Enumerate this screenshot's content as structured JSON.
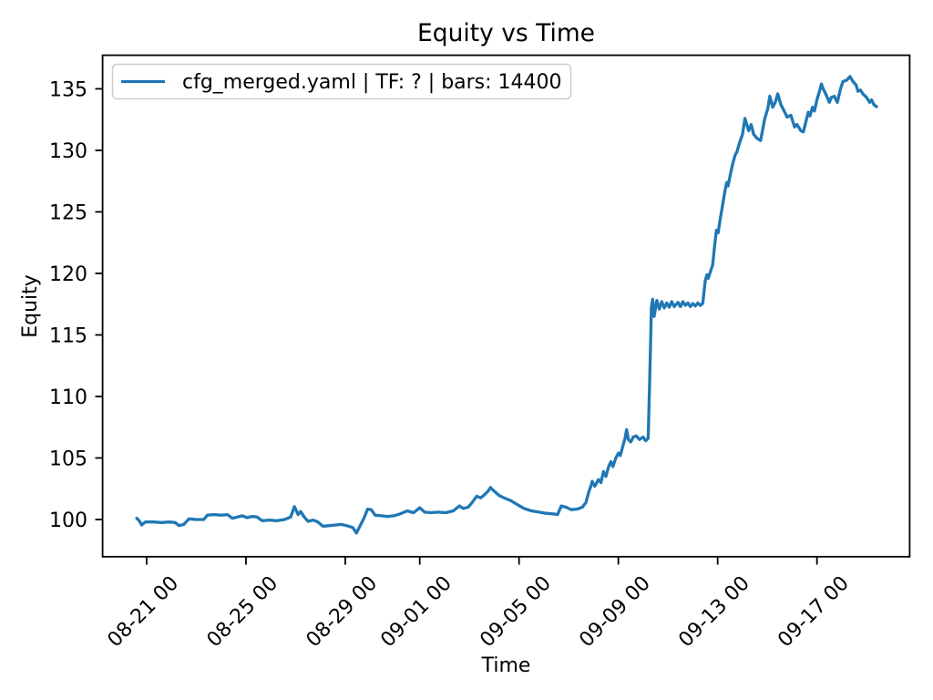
{
  "chart_data": {
    "type": "line",
    "title": "Equity vs Time",
    "xlabel": "Time",
    "ylabel": "Equity",
    "grid": false,
    "legend": [
      {
        "label": "cfg_merged.yaml | TF: ? | bars: 14400",
        "color": "#1f77b4"
      }
    ],
    "legend_position": "upper left",
    "colors": {
      "series": "#1f77b4",
      "spine": "#000000",
      "legend_border": "#cccccc",
      "background": "#ffffff"
    },
    "x_unit": "days since 08-20 00:00",
    "xlim": [
      -0.76,
      31.72
    ],
    "ylim": [
      96.96,
      137.7
    ],
    "yticks": [
      100,
      105,
      110,
      115,
      120,
      125,
      130,
      135
    ],
    "xticks": [
      {
        "v": 1,
        "label": "08-21 00"
      },
      {
        "v": 5,
        "label": "08-25 00"
      },
      {
        "v": 9,
        "label": "08-29 00"
      },
      {
        "v": 12,
        "label": "09-01 00"
      },
      {
        "v": 16,
        "label": "09-05 00"
      },
      {
        "v": 20,
        "label": "09-09 00"
      },
      {
        "v": 24,
        "label": "09-13 00"
      },
      {
        "v": 28,
        "label": "09-17 00"
      }
    ],
    "series": [
      {
        "name": "cfg_merged.yaml | TF: ? | bars: 14400",
        "color": "#1f77b4",
        "x": [
          0.6,
          0.7,
          0.8,
          0.95,
          1.3,
          1.6,
          1.9,
          2.15,
          2.3,
          2.5,
          2.7,
          3.0,
          3.3,
          3.45,
          3.7,
          4.0,
          4.25,
          4.45,
          4.65,
          4.85,
          5.05,
          5.25,
          5.45,
          5.65,
          5.95,
          6.25,
          6.55,
          6.8,
          6.95,
          7.1,
          7.2,
          7.35,
          7.5,
          7.7,
          7.9,
          8.1,
          8.35,
          8.6,
          8.85,
          9.05,
          9.3,
          9.45,
          9.6,
          9.75,
          9.9,
          10.05,
          10.2,
          10.45,
          10.7,
          10.95,
          11.2,
          11.5,
          11.75,
          12.0,
          12.2,
          12.45,
          12.75,
          13.05,
          13.35,
          13.6,
          13.75,
          13.95,
          14.1,
          14.3,
          14.45,
          14.6,
          14.75,
          14.85,
          15.0,
          15.2,
          15.4,
          15.65,
          15.9,
          16.2,
          16.5,
          16.8,
          17.1,
          17.4,
          17.55,
          17.7,
          17.9,
          18.1,
          18.35,
          18.55,
          18.7,
          18.8,
          18.9,
          18.95,
          19.05,
          19.2,
          19.3,
          19.4,
          19.5,
          19.6,
          19.7,
          19.78,
          19.9,
          20.0,
          20.08,
          20.2,
          20.27,
          20.33,
          20.4,
          20.5,
          20.6,
          20.72,
          20.85,
          21.0,
          21.1,
          21.2,
          21.25,
          21.3,
          21.33,
          21.38,
          21.44,
          21.55,
          21.65,
          21.75,
          21.85,
          21.95,
          22.05,
          22.15,
          22.25,
          22.4,
          22.5,
          22.6,
          22.7,
          22.8,
          22.9,
          23.0,
          23.1,
          23.2,
          23.3,
          23.4,
          23.5,
          23.57,
          23.62,
          23.8,
          23.87,
          23.95,
          24.02,
          24.1,
          24.17,
          24.25,
          24.32,
          24.37,
          24.42,
          24.55,
          24.62,
          24.7,
          24.78,
          24.88,
          25.0,
          25.1,
          25.25,
          25.35,
          25.45,
          25.6,
          25.73,
          25.9,
          26.02,
          26.1,
          26.22,
          26.32,
          26.42,
          26.55,
          26.68,
          26.8,
          26.95,
          27.1,
          27.2,
          27.35,
          27.45,
          27.55,
          27.65,
          27.72,
          27.82,
          27.9,
          28.0,
          28.1,
          28.18,
          28.25,
          28.35,
          28.5,
          28.58,
          28.7,
          28.82,
          28.95,
          29.05,
          29.2,
          29.33,
          29.45,
          29.58,
          29.65,
          29.75,
          29.85,
          30.0,
          30.12,
          30.2,
          30.3,
          30.4
        ],
        "y": [
          100.1,
          99.9,
          99.55,
          99.8,
          99.8,
          99.75,
          99.8,
          99.75,
          99.5,
          99.6,
          100.05,
          100.0,
          100.0,
          100.35,
          100.4,
          100.35,
          100.4,
          100.1,
          100.2,
          100.3,
          100.15,
          100.25,
          100.2,
          99.9,
          99.95,
          99.9,
          100.0,
          100.2,
          101.05,
          100.4,
          100.65,
          100.2,
          99.85,
          99.95,
          99.8,
          99.45,
          99.5,
          99.55,
          99.6,
          99.5,
          99.35,
          98.9,
          99.5,
          100.1,
          100.85,
          100.8,
          100.35,
          100.3,
          100.25,
          100.3,
          100.45,
          100.7,
          100.55,
          100.95,
          100.6,
          100.55,
          100.6,
          100.55,
          100.7,
          101.1,
          100.9,
          101.0,
          101.35,
          101.9,
          101.75,
          102.0,
          102.3,
          102.6,
          102.3,
          101.95,
          101.75,
          101.55,
          101.25,
          100.9,
          100.7,
          100.6,
          100.5,
          100.45,
          100.4,
          101.1,
          101.0,
          100.8,
          100.85,
          101.0,
          101.4,
          102.2,
          102.75,
          103.1,
          102.7,
          103.25,
          103.0,
          103.9,
          103.5,
          104.25,
          104.7,
          104.3,
          105.0,
          105.4,
          105.2,
          106.1,
          106.6,
          107.3,
          106.5,
          106.3,
          106.7,
          106.8,
          106.5,
          106.7,
          106.4,
          106.6,
          110.3,
          114.5,
          117.2,
          117.9,
          116.5,
          117.8,
          117.1,
          117.7,
          117.2,
          117.6,
          117.25,
          117.7,
          117.3,
          117.65,
          117.3,
          117.7,
          117.4,
          117.6,
          117.3,
          117.55,
          117.35,
          117.6,
          117.4,
          117.55,
          119.4,
          119.9,
          119.6,
          120.7,
          122.1,
          123.5,
          123.3,
          124.4,
          125.2,
          126.2,
          127.0,
          127.4,
          127.1,
          128.4,
          129.0,
          129.6,
          129.9,
          130.6,
          131.3,
          132.6,
          131.6,
          132.1,
          131.3,
          130.95,
          130.8,
          132.6,
          133.4,
          134.4,
          133.5,
          133.9,
          134.6,
          133.7,
          133.2,
          132.7,
          132.85,
          131.9,
          132.1,
          131.6,
          131.5,
          132.3,
          133.1,
          132.8,
          133.5,
          133.2,
          134.1,
          134.8,
          135.4,
          135.0,
          134.6,
          133.9,
          134.3,
          134.4,
          133.9,
          135.0,
          135.6,
          135.7,
          136.0,
          135.6,
          135.3,
          134.8,
          134.9,
          134.6,
          134.3,
          133.9,
          134.1,
          133.7,
          133.55
        ]
      }
    ]
  }
}
